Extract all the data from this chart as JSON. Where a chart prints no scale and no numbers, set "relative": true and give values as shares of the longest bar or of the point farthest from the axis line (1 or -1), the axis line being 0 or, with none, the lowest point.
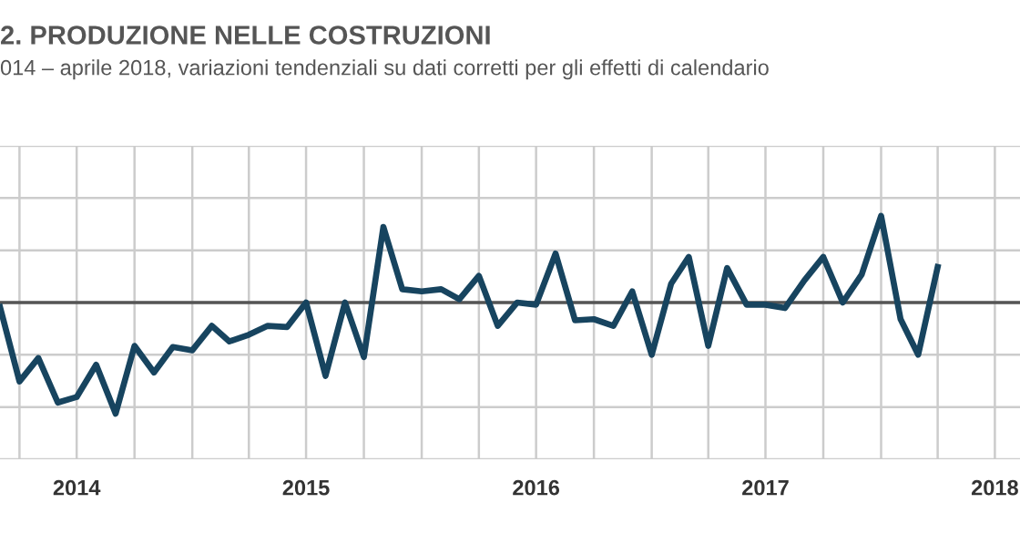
{
  "chart_data": {
    "type": "line",
    "title": "2. PRODUZIONE NELLE COSTRUZIONI",
    "subtitle": "014 – aprile 2018, variazioni tendenziali su dati corretti per gli effetti di calendario",
    "relative": true,
    "x": [
      "2014-03",
      "2014-04",
      "2014-05",
      "2014-06",
      "2014-07",
      "2014-08",
      "2014-09",
      "2014-10",
      "2014-11",
      "2014-12",
      "2015-01",
      "2015-02",
      "2015-03",
      "2015-04",
      "2015-05",
      "2015-06",
      "2015-07",
      "2015-08",
      "2015-09",
      "2015-10",
      "2015-11",
      "2015-12",
      "2016-01",
      "2016-02",
      "2016-03",
      "2016-04",
      "2016-05",
      "2016-06",
      "2016-07",
      "2016-08",
      "2016-09",
      "2016-10",
      "2016-11",
      "2016-12",
      "2017-01",
      "2017-02",
      "2017-03",
      "2017-04",
      "2017-05",
      "2017-06",
      "2017-07",
      "2017-08",
      "2017-09",
      "2017-10",
      "2017-11",
      "2017-12",
      "2018-01",
      "2018-02",
      "2018-03",
      "2018-04"
    ],
    "series": [
      {
        "color": "#17445f",
        "values": [
          -0.04,
          -0.71,
          -0.5,
          -0.9,
          -0.85,
          -0.56,
          -1,
          -0.39,
          -0.63,
          -0.4,
          -0.43,
          -0.21,
          -0.35,
          -0.29,
          -0.21,
          -0.22,
          0,
          -0.66,
          0,
          -0.49,
          0.68,
          0.12,
          0.1,
          0.12,
          0.03,
          0.24,
          -0.21,
          0,
          -0.02,
          0.44,
          -0.16,
          -0.15,
          -0.21,
          0.1,
          -0.47,
          0.17,
          0.41,
          -0.39,
          0.31,
          -0.02,
          -0.02,
          -0.05,
          0.2,
          0.41,
          0,
          0.25,
          0.78,
          -0.15,
          -0.47,
          0.32
        ]
      }
    ],
    "xlim": [
      "2014-03-01",
      "2018-08-10"
    ],
    "xticks": [
      {
        "value": "2014-04-01",
        "label": null
      },
      {
        "value": "2014-07-01",
        "label": "2014"
      },
      {
        "value": "2014-10-01",
        "label": null
      },
      {
        "value": "2015-01-01",
        "label": null
      },
      {
        "value": "2015-04-01",
        "label": null
      },
      {
        "value": "2015-07-01",
        "label": "2015"
      },
      {
        "value": "2015-10-01",
        "label": null
      },
      {
        "value": "2016-01-01",
        "label": null
      },
      {
        "value": "2016-04-01",
        "label": null
      },
      {
        "value": "2016-07-01",
        "label": "2016"
      },
      {
        "value": "2016-10-01",
        "label": null
      },
      {
        "value": "2017-01-01",
        "label": null
      },
      {
        "value": "2017-04-01",
        "label": null
      },
      {
        "value": "2017-07-01",
        "label": "2017"
      },
      {
        "value": "2017-10-01",
        "label": null
      },
      {
        "value": "2018-01-01",
        "label": null
      },
      {
        "value": "2018-04-01",
        "label": null
      },
      {
        "value": "2018-07-01",
        "label": "2018"
      }
    ],
    "grid": true,
    "tick_labels": "x"
  }
}
